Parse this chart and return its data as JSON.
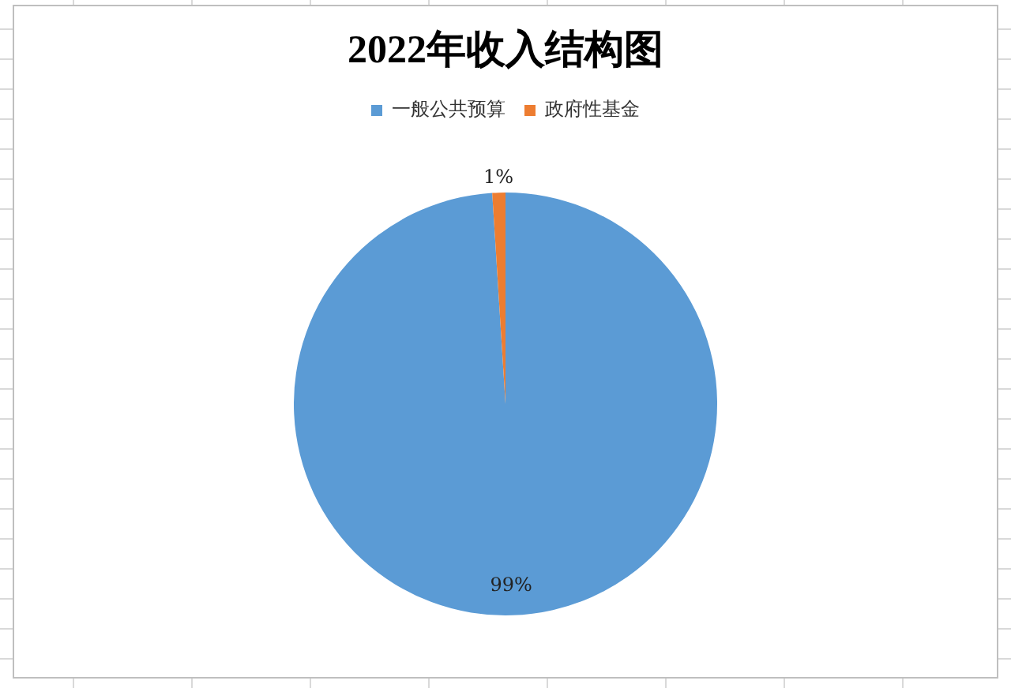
{
  "chart_data": {
    "type": "pie",
    "title": "2022年收入结构图",
    "categories": [
      "一般公共预算",
      "政府性基金"
    ],
    "values": [
      99,
      1
    ],
    "colors": [
      "#5b9bd5",
      "#ed7d31"
    ],
    "value_labels": [
      "99%",
      "1%"
    ],
    "legend": "top"
  }
}
